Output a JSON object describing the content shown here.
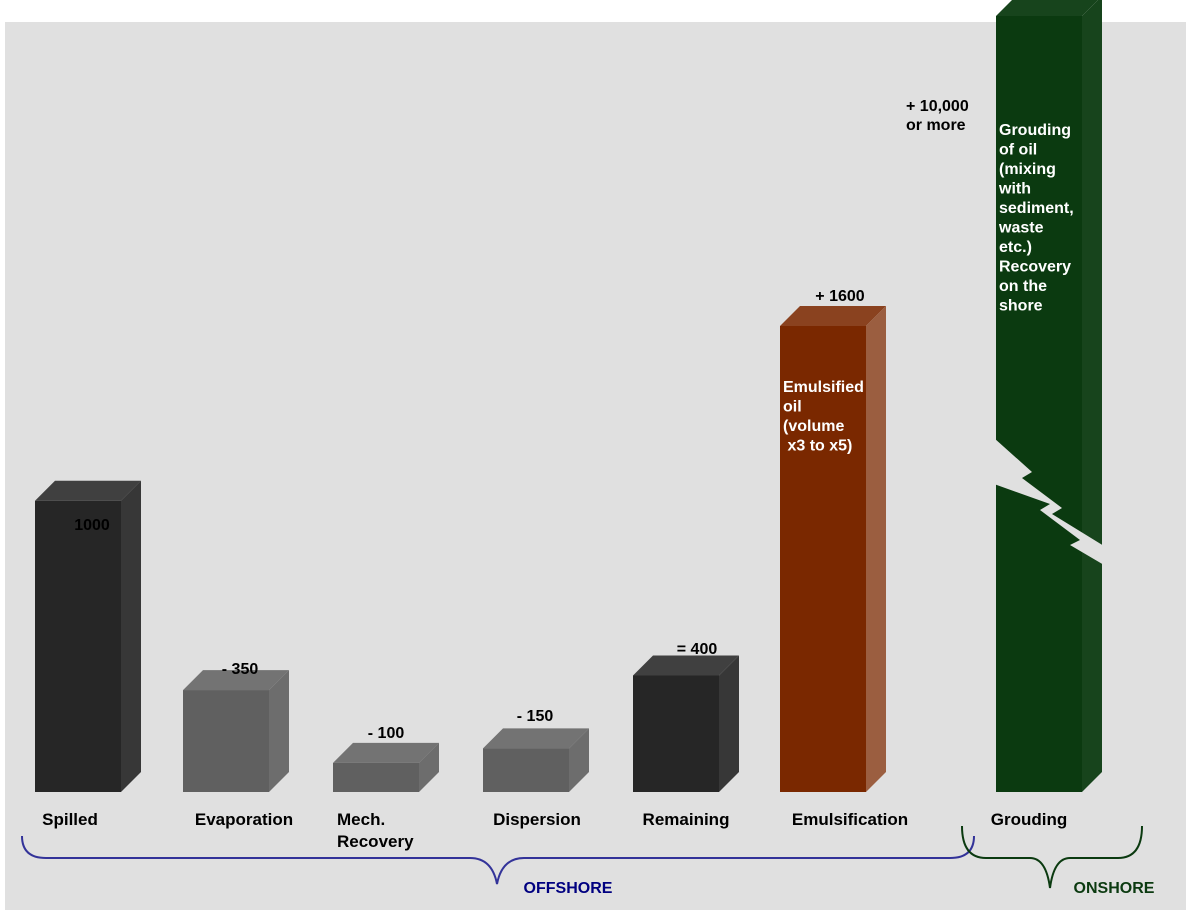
{
  "chart_data": {
    "type": "bar",
    "categories": [
      "Spilled",
      "Evaporation",
      "Mech.\nRecovery",
      "Dispersion",
      "Remaining",
      "Emulsification",
      "Grouding"
    ],
    "values": [
      1000,
      350,
      100,
      150,
      400,
      1600,
      10000
    ],
    "value_labels": [
      "1000",
      "- 350",
      "- 100",
      "- 150",
      "= 400",
      "+ 1600",
      "+ 10,000\nor more"
    ],
    "bar_text": {
      "Emulsification": "Emulsified\noil\n\n(volume\n x3 to x5)",
      "Grouding": "Grouding\nof oil\n\n(mixing\nwith\nsediment,\nwaste\netc.)\n\nRecovery\non the\nshore"
    },
    "axis_break": "Grouding",
    "groups": [
      {
        "label": "OFFSHORE",
        "categories": [
          "Spilled",
          "Evaporation",
          "Mech.\nRecovery",
          "Dispersion",
          "Remaining",
          "Emulsification"
        ]
      },
      {
        "label": "ONSHORE",
        "categories": [
          "Grouding"
        ]
      }
    ],
    "colors": {
      "background": "#e0e0e0",
      "dark_bar": "#262626",
      "gray_bar": "#606060",
      "emulsion_bar": "#7a2800",
      "grounding_bar": "#0b3a10",
      "offshore_brace": "#333399",
      "offshore_text": "#000080",
      "onshore": "#0b3a10"
    },
    "bar_colors": [
      "dark_bar",
      "gray_bar",
      "gray_bar",
      "gray_bar",
      "dark_bar",
      "emulsion_bar",
      "grounding_bar"
    ],
    "ylim": [
      0,
      1900
    ],
    "grid": false,
    "title": "",
    "xlabel": "",
    "ylabel": ""
  }
}
